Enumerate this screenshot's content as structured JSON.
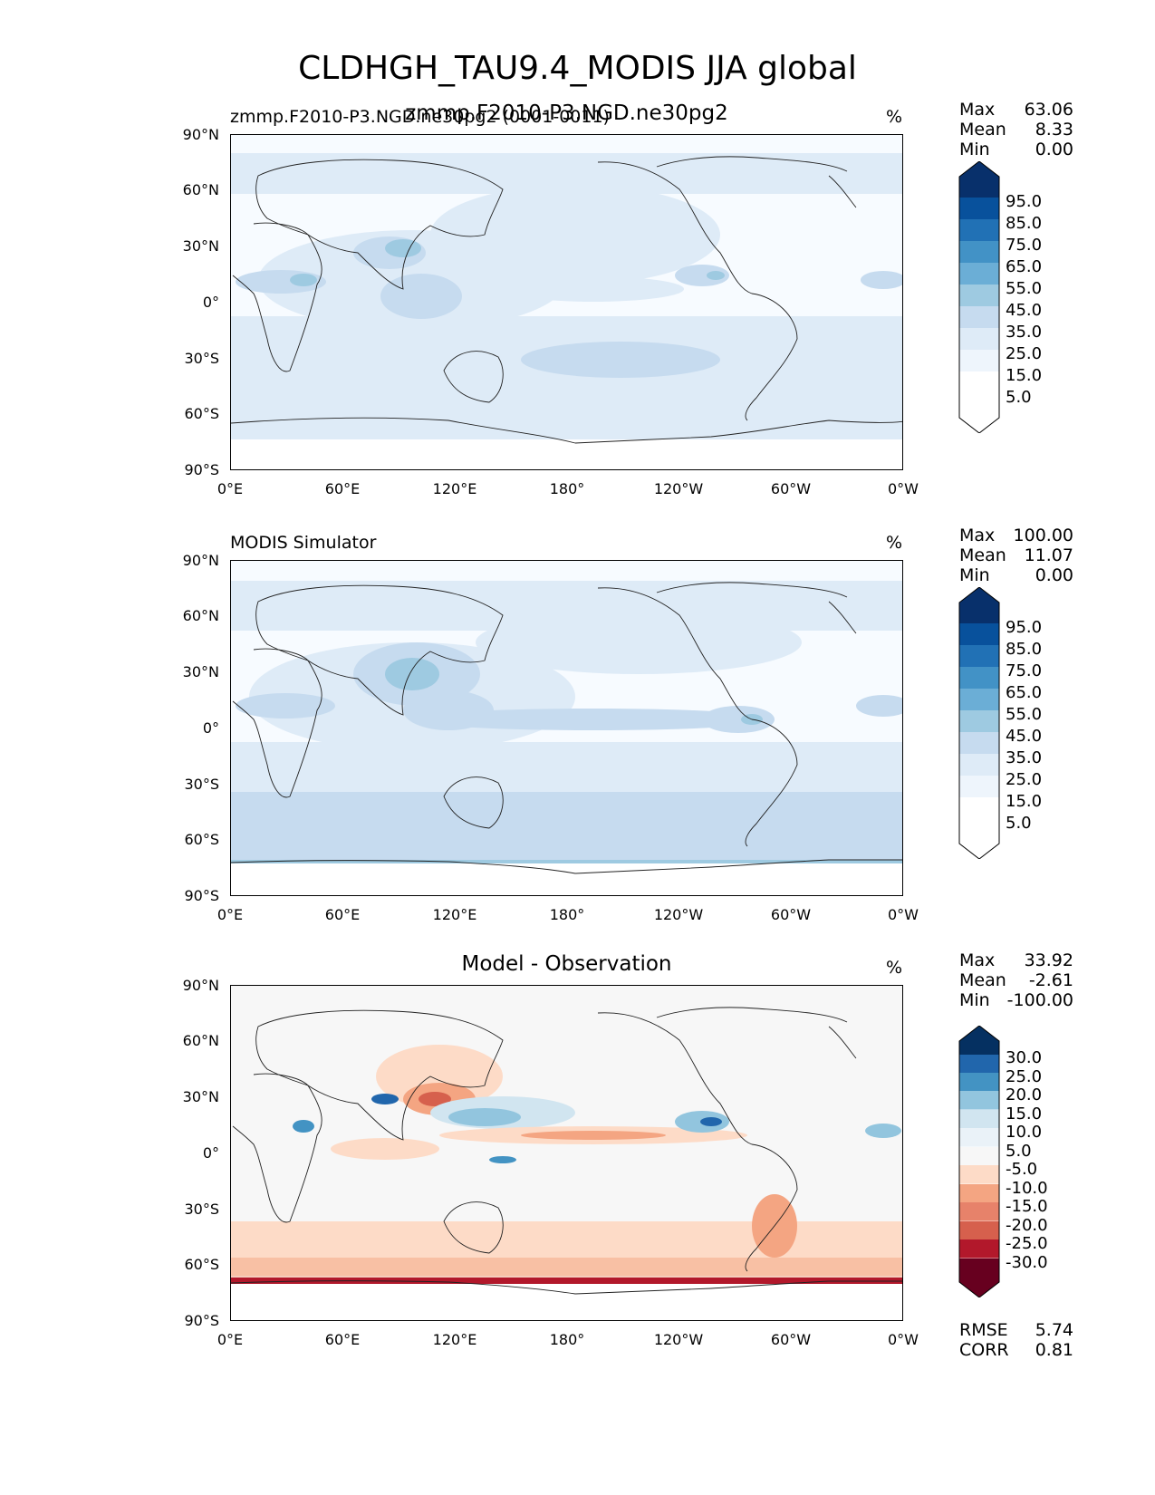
{
  "figure": {
    "title": "CLDHGH_TAU9.4_MODIS JJA global"
  },
  "colors": {
    "blues": [
      "#f7fbff",
      "#deebf7",
      "#c6dbef",
      "#9ecae1",
      "#6baed6",
      "#4292c6",
      "#2171b5",
      "#08519c",
      "#08306b"
    ],
    "diff": [
      "#67001f",
      "#b2182b",
      "#d6604d",
      "#f4a582",
      "#fddbc7",
      "#f7f7f7",
      "#d1e5f0",
      "#92c5de",
      "#4393c3",
      "#2166ac",
      "#053061"
    ]
  },
  "axes": {
    "lat_labels": [
      "90°N",
      "60°N",
      "30°N",
      "0°",
      "30°S",
      "60°S",
      "90°S"
    ],
    "lon_labels": [
      "0°E",
      "60°E",
      "120°E",
      "180°",
      "120°W",
      "60°W",
      "0°W"
    ]
  },
  "panels": [
    {
      "left_title": "zmmp.F2010-P3.NGD.ne30pg2 (0001-0011)",
      "center_title": "zmmp.F2010-P3.NGD.ne30pg2",
      "units": "%",
      "stats": [
        {
          "label": "Max",
          "value": "63.06"
        },
        {
          "label": "Mean",
          "value": "8.33"
        },
        {
          "label": "Min",
          "value": "0.00"
        }
      ],
      "colorbar": {
        "labels": [
          "95.0",
          "85.0",
          "75.0",
          "65.0",
          "55.0",
          "45.0",
          "35.0",
          "25.0",
          "15.0",
          "5.0"
        ]
      }
    },
    {
      "left_title": "MODIS Simulator",
      "center_title": "",
      "units": "%",
      "stats": [
        {
          "label": "Max",
          "value": "100.00"
        },
        {
          "label": "Mean",
          "value": "11.07"
        },
        {
          "label": "Min",
          "value": "0.00"
        }
      ],
      "colorbar": {
        "labels": [
          "95.0",
          "85.0",
          "75.0",
          "65.0",
          "55.0",
          "45.0",
          "35.0",
          "25.0",
          "15.0",
          "5.0"
        ]
      }
    },
    {
      "left_title": "",
      "center_title": "Model - Observation",
      "units": "%",
      "stats": [
        {
          "label": "Max",
          "value": "33.92"
        },
        {
          "label": "Mean",
          "value": "-2.61"
        },
        {
          "label": "Min",
          "value": "-100.00"
        }
      ],
      "metrics": [
        {
          "label": "RMSE",
          "value": "5.74"
        },
        {
          "label": "CORR",
          "value": "0.81"
        }
      ],
      "colorbar": {
        "labels": [
          "30.0",
          "25.0",
          "20.0",
          "15.0",
          "10.0",
          "5.0",
          "-5.0",
          "-10.0",
          "-15.0",
          "-20.0",
          "-25.0",
          "-30.0"
        ]
      }
    }
  ],
  "chart_data": [
    {
      "type": "heatmap",
      "title": "zmmp.F2010-P3.NGD.ne30pg2",
      "subtitle": "zmmp.F2010-P3.NGD.ne30pg2 (0001-0011)",
      "units": "%",
      "xlim": [
        0,
        360
      ],
      "ylim": [
        -90,
        90
      ],
      "x_ticks": [
        "0°E",
        "60°E",
        "120°E",
        "180°",
        "120°W",
        "60°W",
        "0°W"
      ],
      "y_ticks": [
        "90°N",
        "60°N",
        "30°N",
        "0°",
        "30°S",
        "60°S",
        "90°S"
      ],
      "colorbar_levels": [
        5,
        15,
        25,
        35,
        45,
        55,
        65,
        75,
        85,
        95
      ],
      "stats": {
        "max": 63.06,
        "mean": 8.33,
        "min": 0.0
      }
    },
    {
      "type": "heatmap",
      "title": "MODIS Simulator",
      "units": "%",
      "xlim": [
        0,
        360
      ],
      "ylim": [
        -90,
        90
      ],
      "x_ticks": [
        "0°E",
        "60°E",
        "120°E",
        "180°",
        "120°W",
        "60°W",
        "0°W"
      ],
      "y_ticks": [
        "90°N",
        "60°N",
        "30°N",
        "0°",
        "30°S",
        "60°S",
        "90°S"
      ],
      "colorbar_levels": [
        5,
        15,
        25,
        35,
        45,
        55,
        65,
        75,
        85,
        95
      ],
      "stats": {
        "max": 100.0,
        "mean": 11.07,
        "min": 0.0
      }
    },
    {
      "type": "heatmap",
      "title": "Model - Observation",
      "units": "%",
      "xlim": [
        0,
        360
      ],
      "ylim": [
        -90,
        90
      ],
      "x_ticks": [
        "0°E",
        "60°E",
        "120°E",
        "180°",
        "120°W",
        "60°W",
        "0°W"
      ],
      "y_ticks": [
        "90°N",
        "60°N",
        "30°N",
        "0°",
        "30°S",
        "60°S",
        "90°S"
      ],
      "colorbar_levels": [
        -30,
        -25,
        -20,
        -15,
        -10,
        -5,
        5,
        10,
        15,
        20,
        25,
        30
      ],
      "stats": {
        "max": 33.92,
        "mean": -2.61,
        "min": -100.0,
        "rmse": 5.74,
        "corr": 0.81
      }
    }
  ]
}
